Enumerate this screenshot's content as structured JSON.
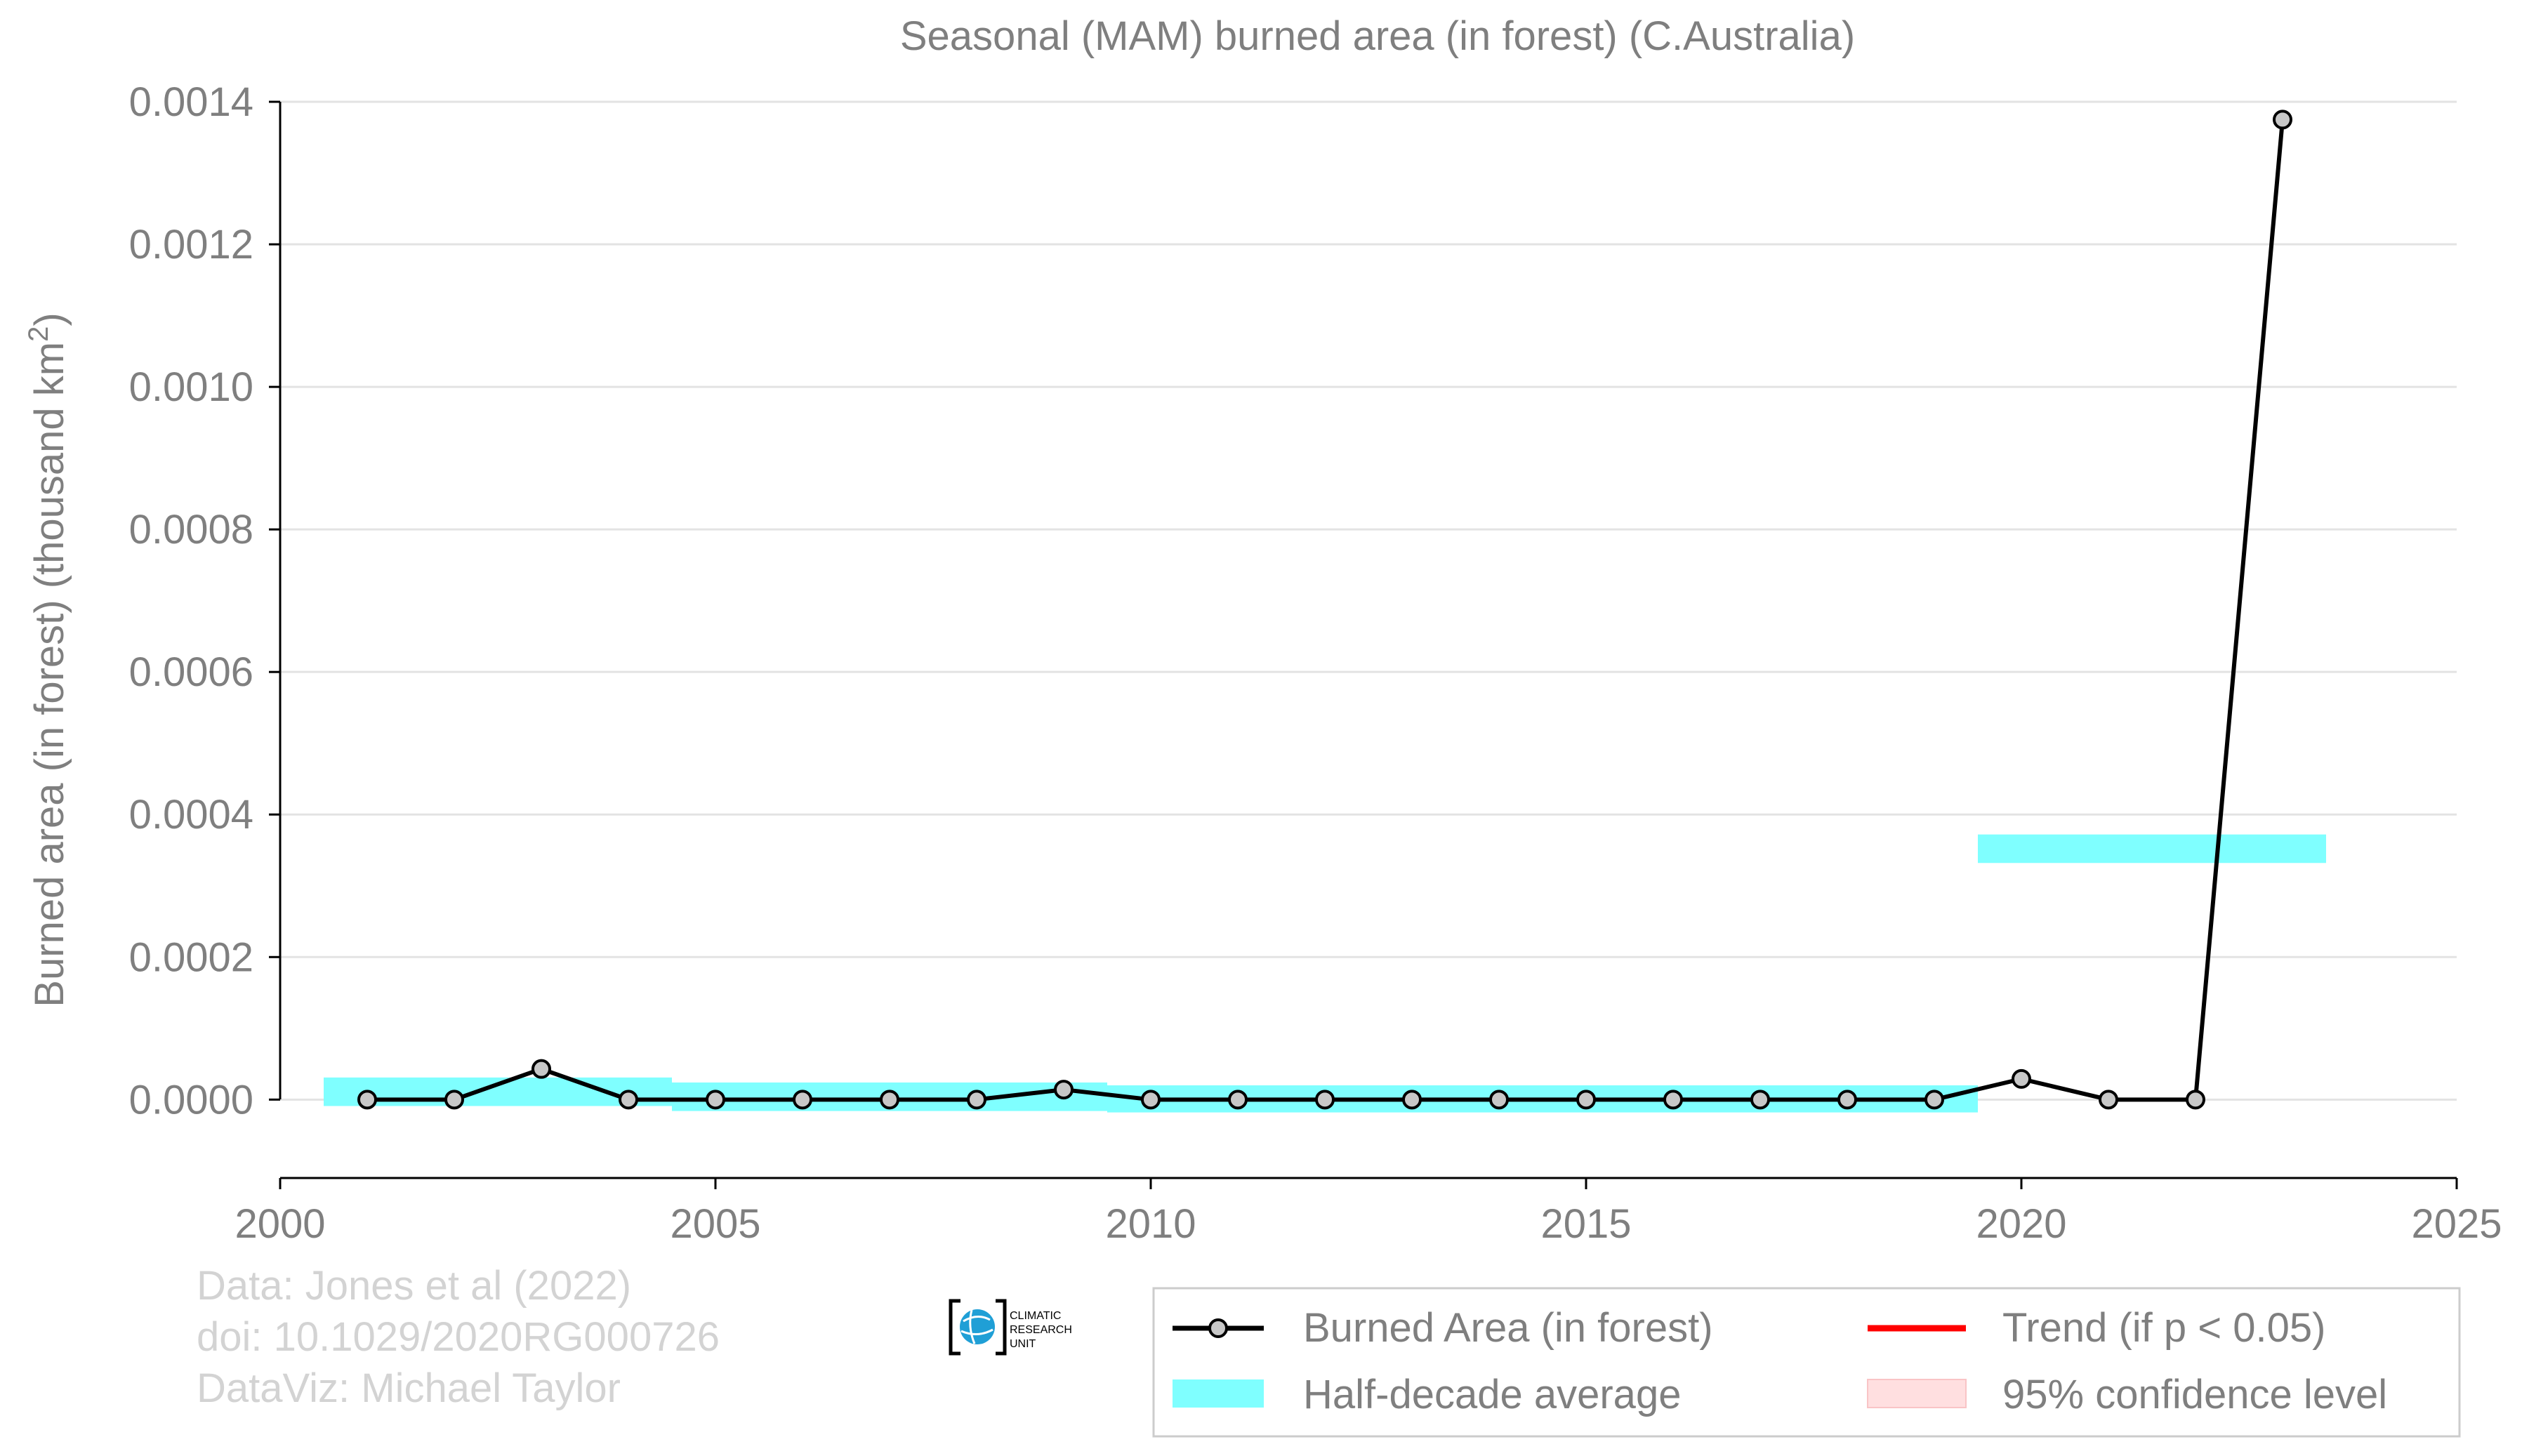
{
  "chart_data": {
    "type": "line",
    "title": "Seasonal (MAM) burned area (in forest) (C.Australia)",
    "ylabel_main": "Burned area (in forest) (thousand km",
    "ylabel_sup": "2",
    "ylabel_close": ")",
    "xlabel": "",
    "xlim": [
      2000,
      2025
    ],
    "ylim": [
      -0.00011,
      0.0014
    ],
    "grid": true,
    "x_ticks": [
      2000,
      2005,
      2010,
      2015,
      2020,
      2025
    ],
    "y_ticks": [
      0.0,
      0.0002,
      0.0004,
      0.0006,
      0.0008,
      0.001,
      0.0012,
      0.0014
    ],
    "y_tick_labels": [
      "0.0000",
      "0.0002",
      "0.0004",
      "0.0006",
      "0.0008",
      "0.0010",
      "0.0012",
      "0.0014"
    ],
    "series": [
      {
        "name": "Burned Area (in forest)",
        "color": "#000000",
        "marker_fill": "#c8c8c8",
        "x": [
          2001,
          2002,
          2003,
          2004,
          2005,
          2006,
          2007,
          2008,
          2009,
          2010,
          2011,
          2012,
          2013,
          2014,
          2015,
          2016,
          2017,
          2018,
          2019,
          2020,
          2021,
          2022,
          2023
        ],
        "y": [
          0.0,
          0.0,
          4.3e-05,
          0.0,
          0.0,
          0.0,
          0.0,
          0.0,
          1.4e-05,
          0.0,
          0.0,
          0.0,
          0.0,
          0.0,
          0.0,
          0.0,
          0.0,
          0.0,
          0.0,
          2.9e-05,
          0.0,
          0.0,
          0.001375
        ]
      }
    ],
    "half_decade_average": {
      "name": "Half-decade average",
      "color": "#7fffff",
      "bands": [
        {
          "x0": 2000.5,
          "x1": 2004.5,
          "y0": -9e-06,
          "y1": 3.1e-05
        },
        {
          "x0": 2004.5,
          "x1": 2009.5,
          "y0": -1.6e-05,
          "y1": 2.4e-05
        },
        {
          "x0": 2009.5,
          "x1": 2019.5,
          "y0": -1.8e-05,
          "y1": 2e-05
        },
        {
          "x0": 2019.5,
          "x1": 2023.5,
          "y0": 0.000332,
          "y1": 0.000372
        }
      ]
    },
    "legend": {
      "placement": "bottom-right",
      "entries": [
        {
          "label": "Burned Area (in forest)",
          "kind": "line-marker",
          "color": "#000000"
        },
        {
          "label": "Trend (if p < 0.05)",
          "kind": "line",
          "color": "#ff0000"
        },
        {
          "label": "Half-decade average",
          "kind": "patch",
          "color": "#7fffff"
        },
        {
          "label": "95% confidence level",
          "kind": "patch",
          "color": "#ffdfe0"
        }
      ]
    }
  },
  "credits": {
    "line1": "Data: Jones et al (2022)",
    "line2": "doi: 10.1029/2020RG000726",
    "line3": "DataViz: Michael Taylor"
  },
  "logo": {
    "line1": "CLIMATIC",
    "line2": "RESEARCH",
    "line3": "UNIT",
    "color": "#1f9fd6"
  }
}
